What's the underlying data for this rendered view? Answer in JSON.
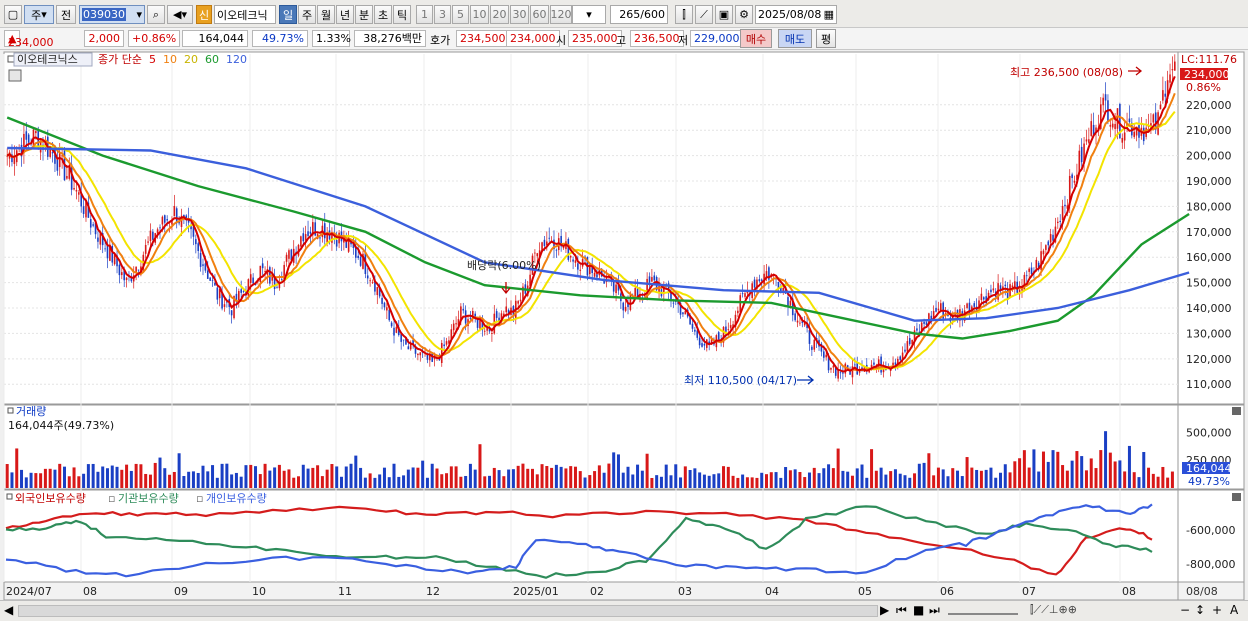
{
  "toolbar": {
    "period_label": "주",
    "prev_label": "전",
    "code": "039030",
    "new_badge": "신",
    "stock_name": "이오테크닉",
    "tabs": [
      "일",
      "주",
      "월",
      "년",
      "분",
      "초",
      "틱"
    ],
    "active_tab": 0,
    "intervals": [
      "1",
      "3",
      "5",
      "10",
      "20",
      "30",
      "60",
      "120"
    ],
    "count": "265",
    "count_max": "/600",
    "date": "2025/08/08"
  },
  "quote": {
    "price": "234,000",
    "change": "2,000",
    "change_pct": "+0.86%",
    "volume": "164,044",
    "volume_ratio": "49.73%",
    "turnover": "1.33%",
    "amount": "38,276백만",
    "ask_label": "호가",
    "ask": "234,500",
    "bid": "234,000",
    "open_label": "시",
    "open": "235,000",
    "high_label": "고",
    "high": "236,500",
    "low_label": "저",
    "low": "229,000",
    "buy_label": "매수",
    "sell_label": "매도",
    "avg_label": "평"
  },
  "colors": {
    "up": "#d81818",
    "down": "#1a3fc4",
    "ma5": "#d40000",
    "ma10": "#f08010",
    "ma20": "#f3e400",
    "ma60": "#1b9a2e",
    "ma120": "#3b5fdc",
    "foreign": "#d41c1c",
    "institution": "#2e8c5a",
    "individual": "#3a5fe0"
  },
  "chart_data": [
    {
      "type": "candlestick",
      "panel": "price",
      "title": "이오테크닉스",
      "legend": [
        "종가 단순",
        "5",
        "10",
        "20",
        "60",
        "120"
      ],
      "x_labels": [
        "2024/07",
        "08",
        "09",
        "10",
        "11",
        "12",
        "2025/01",
        "02",
        "03",
        "04",
        "05",
        "06",
        "07",
        "08"
      ],
      "y_ticks": [
        110000,
        120000,
        130000,
        140000,
        150000,
        160000,
        170000,
        180000,
        190000,
        200000,
        210000,
        220000
      ],
      "y_tick_labels": [
        "110,000",
        "120,000",
        "130,000",
        "140,000",
        "150,000",
        "160,000",
        "170,000",
        "180,000",
        "190,000",
        "200,000",
        "210,000",
        "220,000"
      ],
      "ylim": [
        103000,
        240000
      ],
      "close_path": [
        [
          0,
          200000
        ],
        [
          12,
          208000
        ],
        [
          20,
          200000
        ],
        [
          28,
          188000
        ],
        [
          36,
          172000
        ],
        [
          44,
          160000
        ],
        [
          50,
          150000
        ],
        [
          56,
          160000
        ],
        [
          62,
          170000
        ],
        [
          70,
          178000
        ],
        [
          76,
          170000
        ],
        [
          82,
          158000
        ],
        [
          88,
          145000
        ],
        [
          94,
          140000
        ],
        [
          100,
          148000
        ],
        [
          106,
          155000
        ],
        [
          112,
          150000
        ],
        [
          118,
          160000
        ],
        [
          124,
          170000
        ],
        [
          130,
          172000
        ],
        [
          136,
          170000
        ],
        [
          142,
          165000
        ],
        [
          148,
          160000
        ],
        [
          154,
          150000
        ],
        [
          160,
          135000
        ],
        [
          166,
          125000
        ],
        [
          172,
          122000
        ],
        [
          178,
          118000
        ],
        [
          184,
          126000
        ],
        [
          190,
          138000
        ],
        [
          196,
          135000
        ],
        [
          202,
          132000
        ],
        [
          208,
          140000
        ],
        [
          212,
          138000
        ],
        [
          218,
          150000
        ],
        [
          222,
          165000
        ],
        [
          228,
          168000
        ],
        [
          234,
          163000
        ],
        [
          240,
          158000
        ],
        [
          246,
          155000
        ],
        [
          252,
          150000
        ],
        [
          258,
          142000
        ],
        [
          264,
          145000
        ],
        [
          270,
          150000
        ],
        [
          276,
          146000
        ],
        [
          282,
          140000
        ],
        [
          288,
          130000
        ],
        [
          294,
          124000
        ],
        [
          300,
          130000
        ],
        [
          306,
          140000
        ],
        [
          312,
          150000
        ],
        [
          318,
          154000
        ],
        [
          324,
          150000
        ],
        [
          330,
          138000
        ],
        [
          336,
          128000
        ],
        [
          342,
          120000
        ],
        [
          348,
          115000
        ],
        [
          354,
          116000
        ],
        [
          360,
          118000
        ],
        [
          366,
          117000
        ],
        [
          372,
          120000
        ],
        [
          378,
          126000
        ],
        [
          384,
          134000
        ],
        [
          390,
          140000
        ],
        [
          396,
          136000
        ],
        [
          402,
          140000
        ],
        [
          408,
          144000
        ],
        [
          414,
          148000
        ],
        [
          420,
          146000
        ],
        [
          426,
          150000
        ],
        [
          432,
          158000
        ],
        [
          438,
          170000
        ],
        [
          444,
          185000
        ],
        [
          450,
          200000
        ],
        [
          456,
          215000
        ],
        [
          460,
          220000
        ],
        [
          466,
          212000
        ],
        [
          472,
          212000
        ],
        [
          478,
          210000
        ],
        [
          482,
          213000
        ],
        [
          486,
          234000
        ]
      ],
      "ma60_path": [
        [
          0,
          215000
        ],
        [
          40,
          200000
        ],
        [
          80,
          188000
        ],
        [
          120,
          178000
        ],
        [
          150,
          170000
        ],
        [
          175,
          158000
        ],
        [
          200,
          149000
        ],
        [
          240,
          145000
        ],
        [
          280,
          143000
        ],
        [
          320,
          142000
        ],
        [
          350,
          136000
        ],
        [
          380,
          130000
        ],
        [
          400,
          128000
        ],
        [
          420,
          131000
        ],
        [
          440,
          135000
        ],
        [
          455,
          145000
        ],
        [
          475,
          165000
        ],
        [
          495,
          177000
        ]
      ],
      "ma120_path": [
        [
          0,
          203000
        ],
        [
          60,
          202000
        ],
        [
          100,
          195000
        ],
        [
          150,
          180000
        ],
        [
          200,
          158000
        ],
        [
          250,
          151000
        ],
        [
          300,
          147000
        ],
        [
          340,
          146000
        ],
        [
          380,
          135000
        ],
        [
          410,
          136000
        ],
        [
          440,
          140000
        ],
        [
          470,
          147000
        ],
        [
          495,
          154000
        ]
      ],
      "annotations": [
        {
          "text": "최고 236,500 (08/08)",
          "value": 236500
        },
        {
          "text": "최저 110,500 (04/17)",
          "value": 110500
        },
        {
          "text": "배당락(6.00%)",
          "value": 159000
        }
      ],
      "right_labels": {
        "lc": "LC:111.76",
        "price_tag": "234,000",
        "change_tag": "0.86%"
      }
    },
    {
      "type": "bar",
      "panel": "volume",
      "title": "거래량",
      "current": "164,044주(49.73%)",
      "y_ticks": [
        250000,
        500000
      ],
      "y_tick_labels": [
        "250,000",
        "500,000"
      ],
      "ylim": [
        0,
        720000
      ],
      "current_tag": "164,044",
      "current_pct_tag": "49.73%"
    },
    {
      "type": "line",
      "panel": "holdings",
      "series": [
        {
          "name": "외국인보유수량"
        },
        {
          "name": "기관보유수량"
        },
        {
          "name": "개인보유수량"
        }
      ],
      "y_ticks": [
        -600000,
        -800000
      ],
      "y_tick_labels": [
        "-600,000",
        "-800,000"
      ]
    }
  ],
  "axis": {
    "last_date": "08/08"
  }
}
